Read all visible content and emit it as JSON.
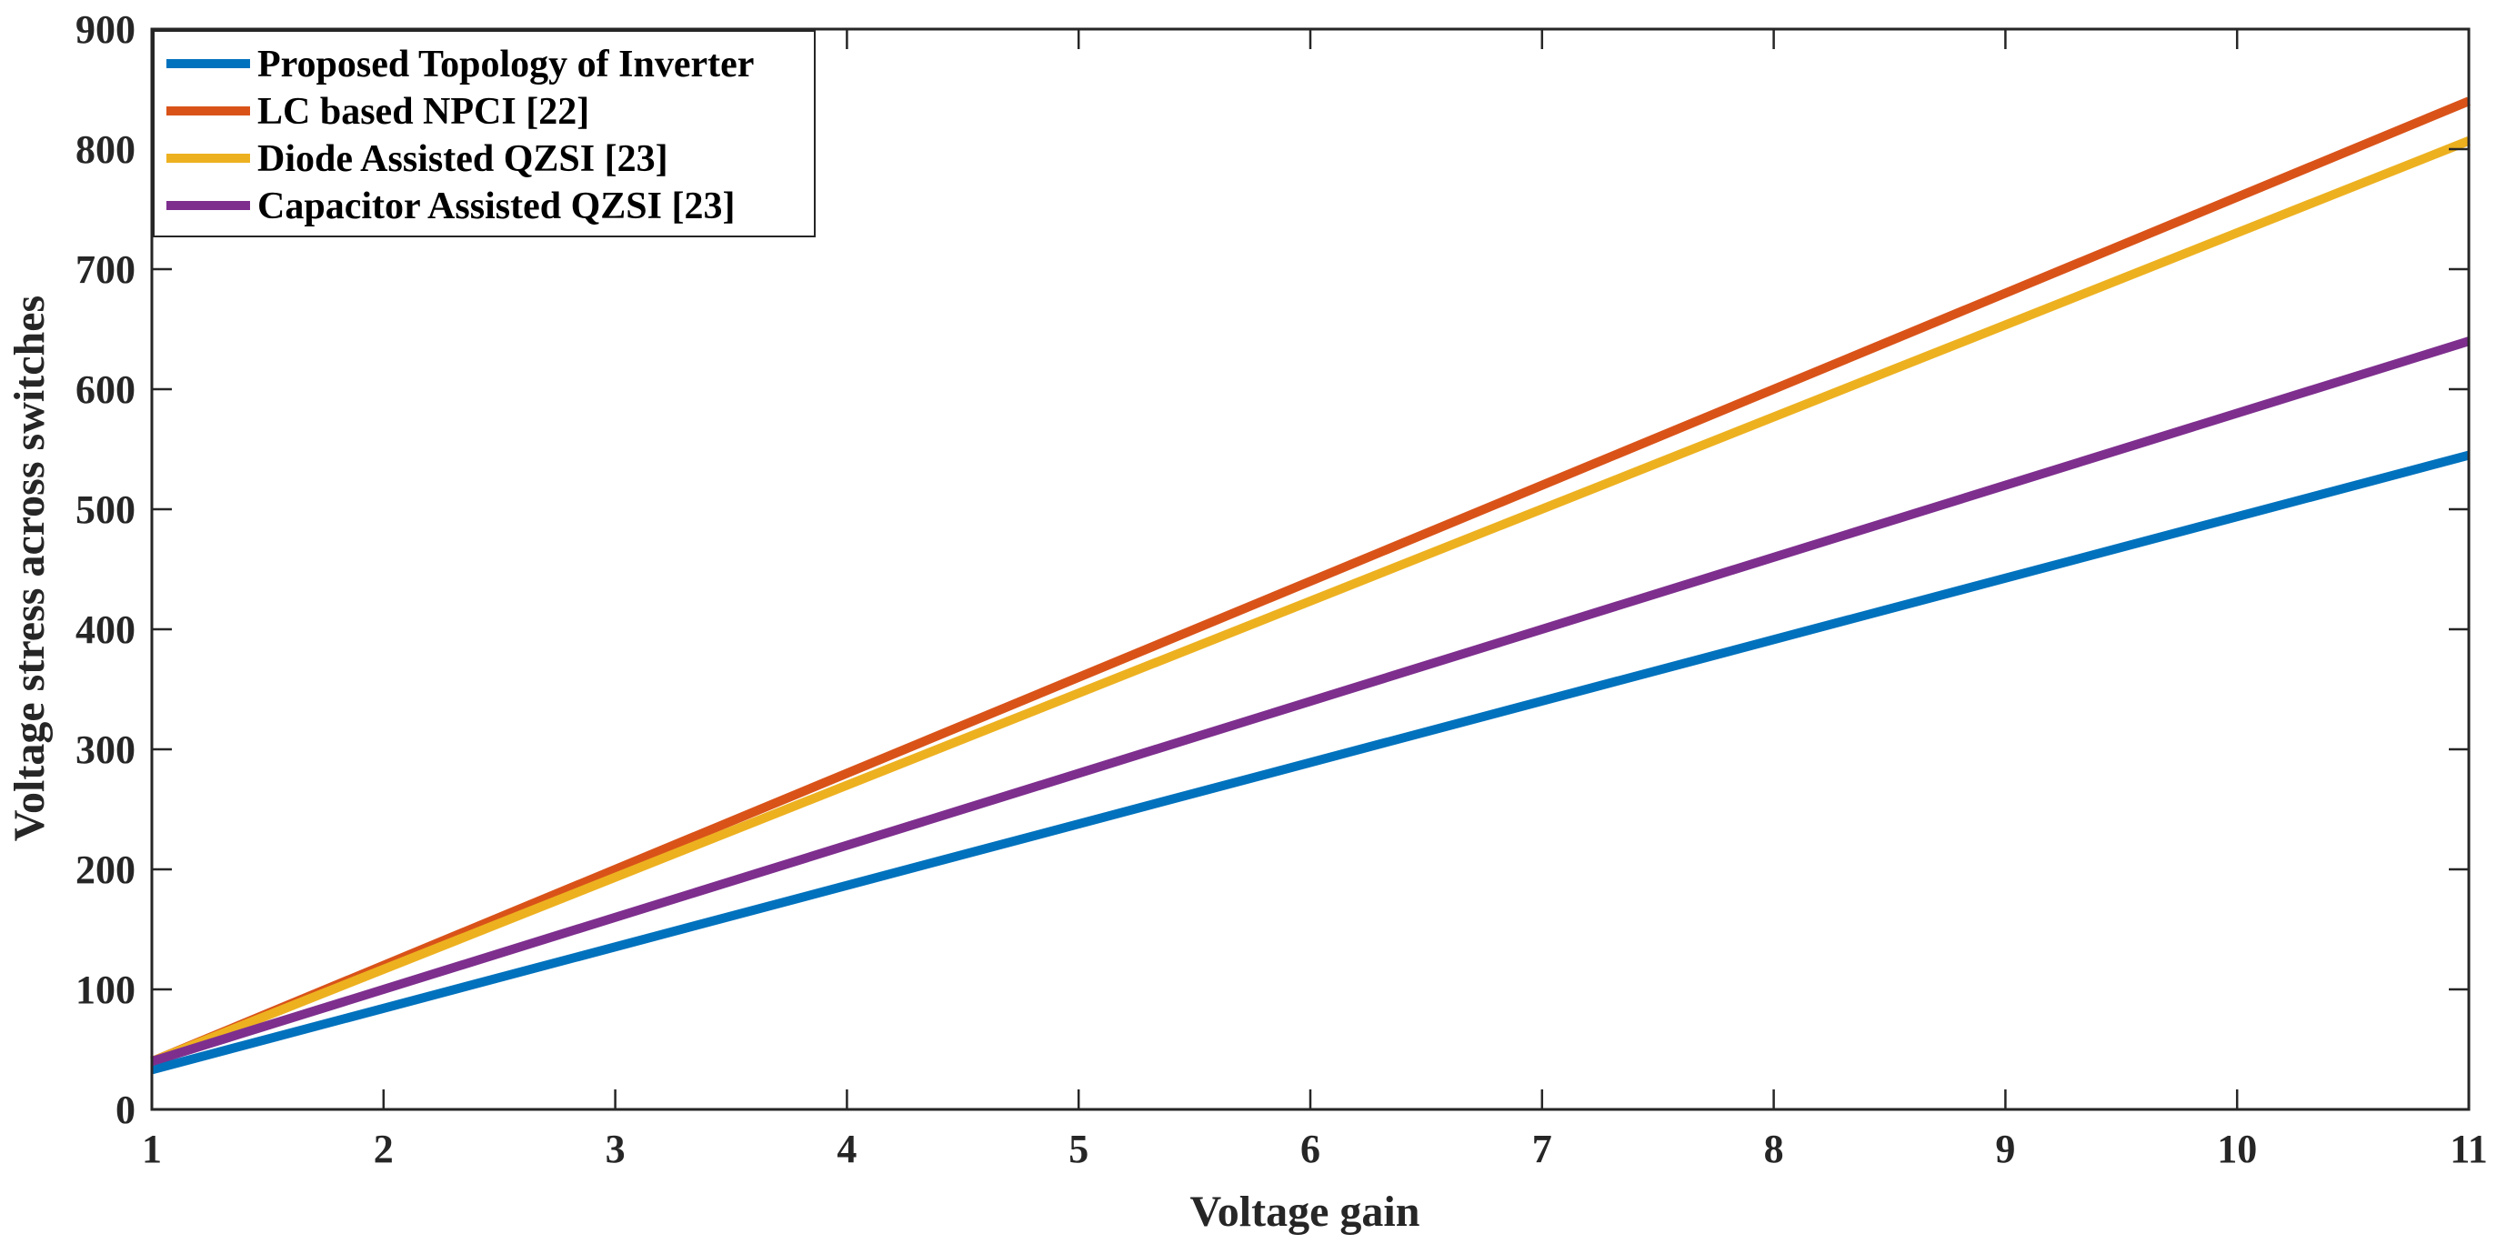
{
  "chart_data": {
    "type": "line",
    "title": "",
    "xlabel": "Voltage gain",
    "ylabel": "Voltage stress across switches",
    "xlim": [
      1,
      11
    ],
    "ylim": [
      0,
      900
    ],
    "xticks": [
      1,
      2,
      3,
      4,
      5,
      6,
      7,
      8,
      9,
      10,
      11
    ],
    "yticks": [
      0,
      100,
      200,
      300,
      400,
      500,
      600,
      700,
      800,
      900
    ],
    "x": [
      1,
      11
    ],
    "grid": false,
    "legend_position": "top-left",
    "series": [
      {
        "name": "Proposed Topology of Inverter",
        "color": "#0072BD",
        "values": [
          33,
          545
        ]
      },
      {
        "name": "LC based NPCI [22]",
        "color": "#D95319",
        "values": [
          40,
          840
        ]
      },
      {
        "name": "Diode Assisted QZSI [23]",
        "color": "#EDB120",
        "values": [
          40,
          807
        ]
      },
      {
        "name": "Capacitor Assisted QZSI [23]",
        "color": "#7E2F8E",
        "values": [
          40,
          640
        ]
      }
    ]
  }
}
